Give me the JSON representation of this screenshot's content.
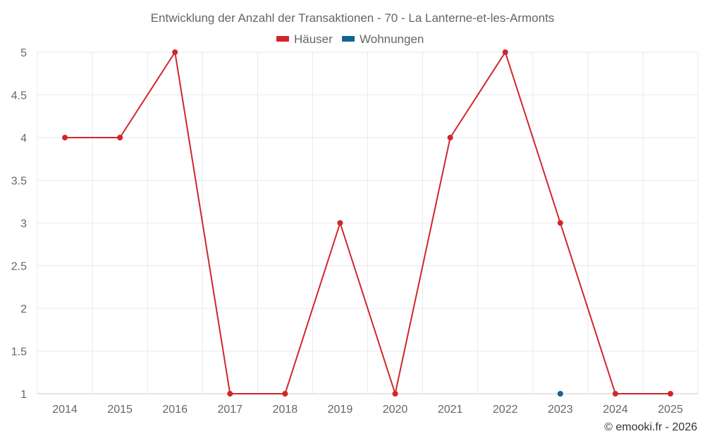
{
  "chart_data": {
    "type": "line",
    "title": "Entwicklung der Anzahl der Transaktionen - 70 - La Lanterne-et-les-Armonts",
    "x": [
      "2014",
      "2015",
      "2016",
      "2017",
      "2018",
      "2019",
      "2020",
      "2021",
      "2022",
      "2023",
      "2024",
      "2025"
    ],
    "y_ticks": [
      "1",
      "1.5",
      "2",
      "2.5",
      "3",
      "3.5",
      "4",
      "4.5",
      "5"
    ],
    "ylim": [
      1,
      5
    ],
    "grid": true,
    "legend_position": "top-center",
    "series": [
      {
        "name": "Häuser",
        "color": "#d0262b",
        "values": [
          4,
          4,
          5,
          1,
          1,
          3,
          1,
          4,
          5,
          3,
          1,
          1
        ]
      },
      {
        "name": "Wohnungen",
        "color": "#0f6396",
        "values": [
          null,
          null,
          null,
          null,
          null,
          null,
          null,
          null,
          null,
          1,
          null,
          null
        ]
      }
    ],
    "credit": "© emooki.fr - 2026"
  }
}
